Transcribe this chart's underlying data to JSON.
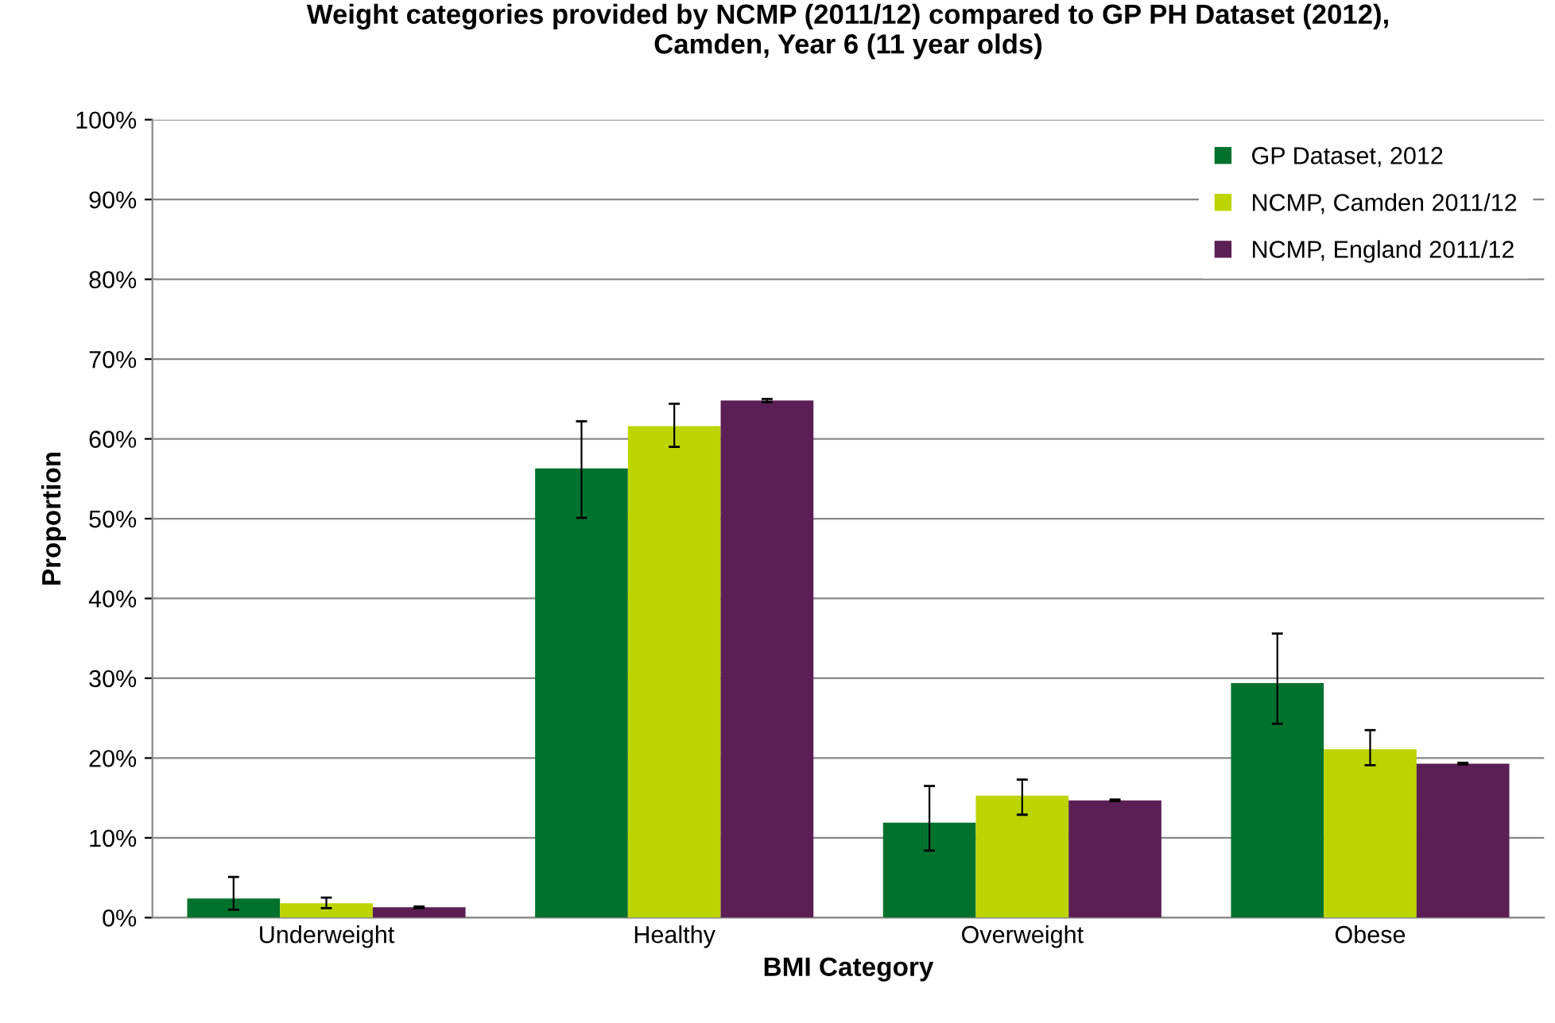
{
  "chart_data": {
    "type": "bar",
    "title": "Weight categories provided by NCMP (2011/12) compared to GP PH Dataset (2012),\nCamden, Year 6 (11 year olds)",
    "xlabel": "BMI Category",
    "ylabel": "Proportion",
    "categories": [
      "Underweight",
      "Healthy",
      "Overweight",
      "Obese"
    ],
    "series": [
      {
        "name": "GP Dataset, 2012",
        "color": "#00722e",
        "values": [
          2.4,
          56.3,
          11.9,
          29.4
        ],
        "errors": [
          [
            1.0,
            5.1
          ],
          [
            50.1,
            62.2
          ],
          [
            8.4,
            16.5
          ],
          [
            24.3,
            35.6
          ]
        ]
      },
      {
        "name": "NCMP, Camden 2011/12",
        "color": "#bcd400",
        "values": [
          1.8,
          61.6,
          15.3,
          21.1
        ],
        "errors": [
          [
            1.2,
            2.5
          ],
          [
            59.0,
            64.4
          ],
          [
            12.9,
            17.3
          ],
          [
            19.1,
            23.5
          ]
        ]
      },
      {
        "name": "NCMP, England 2011/12",
        "color": "#5b1f55",
        "values": [
          1.3,
          64.8,
          14.7,
          19.3
        ],
        "errors": [
          [
            1.2,
            1.4
          ],
          [
            64.6,
            65.0
          ],
          [
            14.6,
            14.8
          ],
          [
            19.2,
            19.4
          ]
        ]
      }
    ],
    "ylim": [
      0,
      100
    ],
    "yticks": [
      {
        "value": 0,
        "label": "0%"
      },
      {
        "value": 10,
        "label": "10%"
      },
      {
        "value": 20,
        "label": "20%"
      },
      {
        "value": 30,
        "label": "30%"
      },
      {
        "value": 40,
        "label": "40%"
      },
      {
        "value": 50,
        "label": "50%"
      },
      {
        "value": 60,
        "label": "60%"
      },
      {
        "value": 70,
        "label": "70%"
      },
      {
        "value": 80,
        "label": "80%"
      },
      {
        "value": 90,
        "label": "90%"
      },
      {
        "value": 100,
        "label": "100%"
      }
    ],
    "grid": "y",
    "legend": "top right"
  }
}
